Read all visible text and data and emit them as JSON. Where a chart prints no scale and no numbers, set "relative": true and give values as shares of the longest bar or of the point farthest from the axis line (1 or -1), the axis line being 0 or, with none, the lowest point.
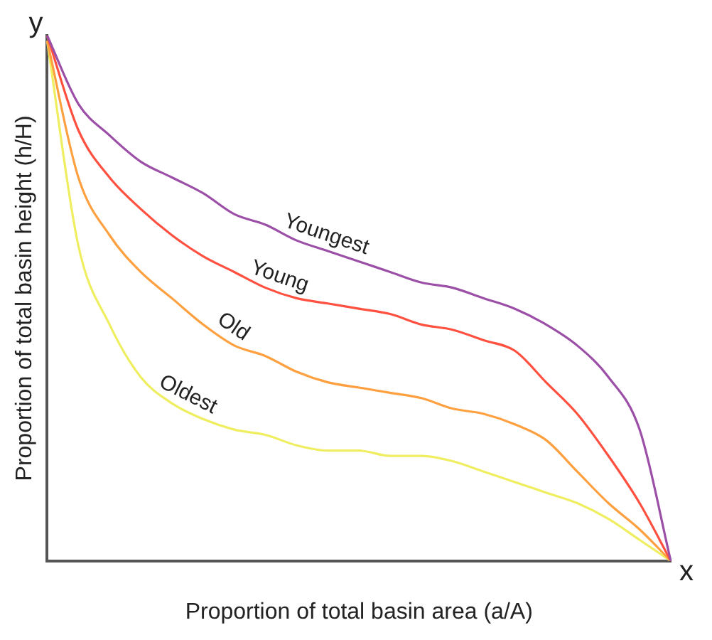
{
  "chart_data": {
    "type": "line",
    "relative": true,
    "xlabel": "Proportion of total basin area (a/A)",
    "ylabel": "Proportion of total basin height (h/H)",
    "annotations": [
      "y",
      "x"
    ],
    "categories": [
      null,
      null,
      null,
      null,
      null,
      null,
      null,
      null,
      null,
      null,
      null,
      null,
      null,
      null,
      null,
      null,
      null,
      null,
      null,
      null,
      null
    ],
    "series": [
      {
        "name": "Youngest",
        "color": "#9b4fa6",
        "values": [
          1,
          0.87,
          0.81,
          0.76,
          0.73,
          0.7,
          0.66,
          0.64,
          0.61,
          0.59,
          0.57,
          0.55,
          0.53,
          0.52,
          0.5,
          0.48,
          0.45,
          0.41,
          0.35,
          0.25,
          0
        ]
      },
      {
        "name": "Young",
        "color": "#ff5040",
        "values": [
          1,
          0.82,
          0.73,
          0.67,
          0.62,
          0.58,
          0.55,
          0.52,
          0.5,
          0.49,
          0.48,
          0.47,
          0.45,
          0.44,
          0.42,
          0.4,
          0.34,
          0.28,
          0.2,
          0.11,
          0
        ]
      },
      {
        "name": "Old",
        "color": "#ffa040",
        "values": [
          0.99,
          0.73,
          0.62,
          0.55,
          0.5,
          0.45,
          0.41,
          0.39,
          0.36,
          0.34,
          0.33,
          0.32,
          0.31,
          0.29,
          0.28,
          0.26,
          0.23,
          0.17,
          0.11,
          0.06,
          0
        ]
      },
      {
        "name": "Oldest",
        "color": "#eeee60",
        "values": [
          0.99,
          0.6,
          0.45,
          0.35,
          0.3,
          0.27,
          0.25,
          0.24,
          0.22,
          0.21,
          0.21,
          0.2,
          0.2,
          0.19,
          0.17,
          0.15,
          0.13,
          0.11,
          0.08,
          0.04,
          0
        ]
      }
    ],
    "grid": false,
    "legend": false,
    "marker": "none",
    "line_style": "solid"
  }
}
